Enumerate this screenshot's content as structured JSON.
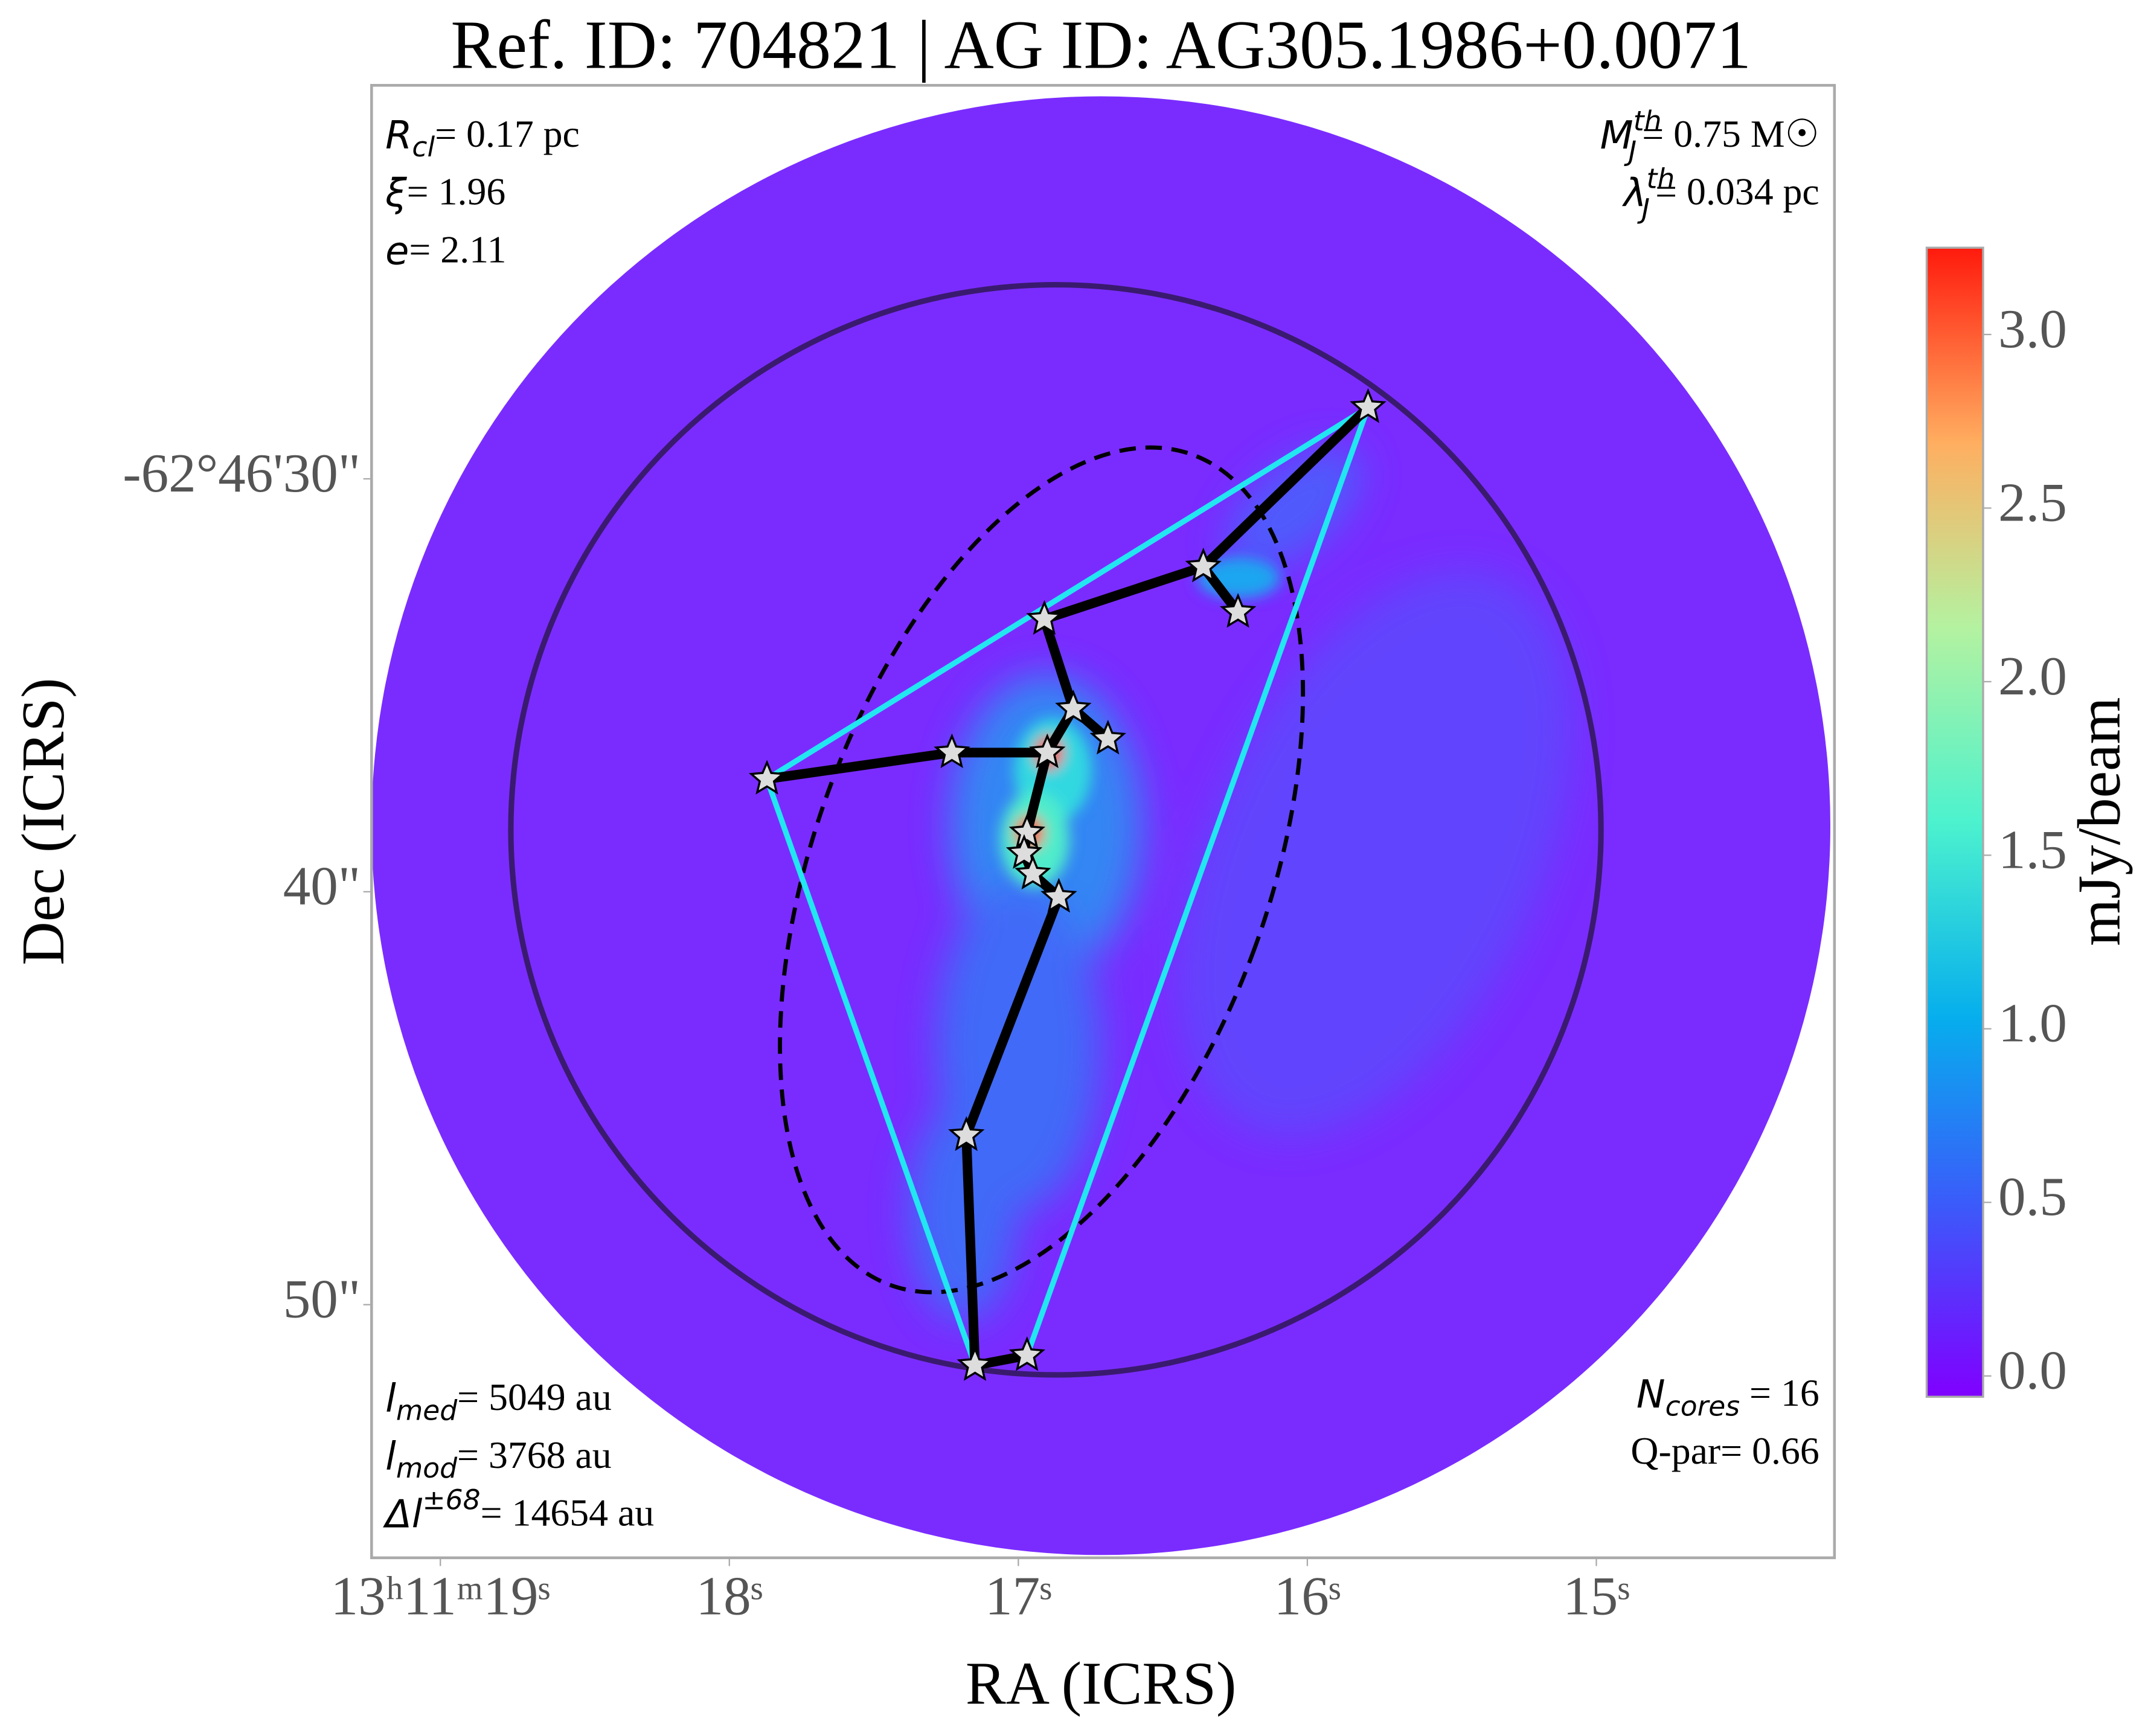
{
  "chart_data": {
    "type": "scatter",
    "title": "Ref. ID: 704821 | AG ID: AG305.1986+0.0071",
    "x_label": "RA (ICRS)",
    "y_label": "Dec (ICRS)",
    "xlim": [
      19.238,
      14.176
    ],
    "ylim": [
      20.47,
      56.13
    ],
    "xticks": [
      {
        "value": 19,
        "label": "13ʰ11ᵐ19ˢ"
      },
      {
        "value": 18,
        "label": "18ˢ"
      },
      {
        "value": 17,
        "label": "17ˢ"
      },
      {
        "value": 16,
        "label": "16ˢ"
      },
      {
        "value": 15,
        "label": "15ˢ"
      }
    ],
    "yticks": [
      {
        "value": 30,
        "label": "-62°46'30\""
      },
      {
        "value": 40,
        "label": "40\""
      },
      {
        "value": 50,
        "label": "50\""
      }
    ],
    "colorbar": {
      "label": "mJy/beam",
      "clim": [
        -0.06,
        3.25
      ],
      "ticks": [
        {
          "value": 0,
          "label": "0.0"
        },
        {
          "value": 0.5,
          "label": "0.5"
        },
        {
          "value": 1,
          "label": "1.0"
        },
        {
          "value": 1.5,
          "label": "1.5"
        },
        {
          "value": 2,
          "label": "2.0"
        },
        {
          "value": 2.5,
          "label": "2.5"
        },
        {
          "value": 3,
          "label": "3.0"
        }
      ]
    },
    "annotations": {
      "top_left": [
        {
          "symbol": "R",
          "sub": "cl",
          "text": "= 0.17 pc"
        },
        {
          "symbol": "ξ",
          "text": "= 1.96"
        },
        {
          "symbol": "e",
          "text": "= 2.11"
        }
      ],
      "top_right": [
        {
          "symbol": "M",
          "sub": "J",
          "sup": "th",
          "text": "= 0.75 M☉"
        },
        {
          "symbol": "λ",
          "sub": "J",
          "sup": "th",
          "text": "= 0.034 pc"
        }
      ],
      "bottom_left": [
        {
          "symbol": "l",
          "sub": "med",
          "text": "= 5049 au"
        },
        {
          "symbol": "l",
          "sub": "mod",
          "text": "= 3768 au"
        },
        {
          "symbol": "Δl",
          "sup": "±68",
          "text": "= 14654 au"
        }
      ],
      "bottom_right": [
        {
          "symbol": "N",
          "sub": "cores",
          "text": " = 16"
        },
        {
          "text": "Q-par= 0.66"
        }
      ]
    },
    "cores": [
      {
        "ra": 15.79,
        "dec": 28.27
      },
      {
        "ra": 16.36,
        "dec": 32.13
      },
      {
        "ra": 16.24,
        "dec": 33.23
      },
      {
        "ra": 16.91,
        "dec": 33.4
      },
      {
        "ra": 16.81,
        "dec": 35.57
      },
      {
        "ra": 16.69,
        "dec": 36.3
      },
      {
        "ra": 16.9,
        "dec": 36.63
      },
      {
        "ra": 17.23,
        "dec": 36.63
      },
      {
        "ra": 17.87,
        "dec": 37.27
      },
      {
        "ra": 16.97,
        "dec": 38.57
      },
      {
        "ra": 16.98,
        "dec": 39.07
      },
      {
        "ra": 16.95,
        "dec": 39.57
      },
      {
        "ra": 16.86,
        "dec": 40.13
      },
      {
        "ra": 17.18,
        "dec": 45.9
      },
      {
        "ra": 16.97,
        "dec": 51.23
      },
      {
        "ra": 17.15,
        "dec": 51.47
      }
    ],
    "mst_edges": [
      [
        0,
        1
      ],
      [
        1,
        2
      ],
      [
        1,
        3
      ],
      [
        3,
        4
      ],
      [
        4,
        5
      ],
      [
        4,
        6
      ],
      [
        6,
        7
      ],
      [
        7,
        8
      ],
      [
        6,
        9
      ],
      [
        9,
        10
      ],
      [
        10,
        11
      ],
      [
        11,
        12
      ],
      [
        12,
        13
      ],
      [
        13,
        15
      ],
      [
        15,
        14
      ]
    ],
    "hull": [
      0,
      8,
      15,
      14
    ],
    "aperture": {
      "ra": 16.87,
      "dec": 38.5,
      "radius": 13.2
    },
    "ellipse": {
      "ra": 16.92,
      "dec": 39.47,
      "a": 10.7,
      "b": 5.5,
      "angle": 20
    }
  }
}
